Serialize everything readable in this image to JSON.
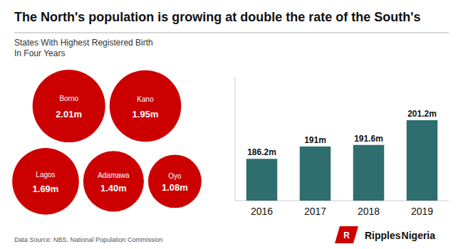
{
  "chart_data": [
    {
      "type": "bubble",
      "title": "The North's population is growing at double the rate of the South's",
      "subtitle": [
        "States With Highest Registered Birth",
        "In Four Years"
      ],
      "categories": [
        "Borno",
        "Kano",
        "Lagos",
        "Adamawa",
        "Oyo"
      ],
      "values": [
        2.01,
        1.95,
        1.69,
        1.4,
        1.08
      ],
      "value_labels": [
        "2.01m",
        "1.95m",
        "1.69m",
        "1.40m",
        "1.08m"
      ],
      "color": "#cc0000",
      "data_labels": true
    },
    {
      "type": "bar",
      "categories": [
        "2016",
        "2017",
        "2018",
        "2019"
      ],
      "values": [
        186.2,
        191.0,
        191.6,
        201.2
      ],
      "value_labels": [
        "186.2m",
        "191m",
        "191.6m",
        "201.2m"
      ],
      "color": "#2e6e6e",
      "ylim": [
        170,
        218
      ],
      "tick_labels": "x",
      "data_labels": true,
      "annotations": [
        "Data Source: NBS, National Population Commission",
        "R",
        "Ripples",
        "Nigeria"
      ]
    }
  ]
}
